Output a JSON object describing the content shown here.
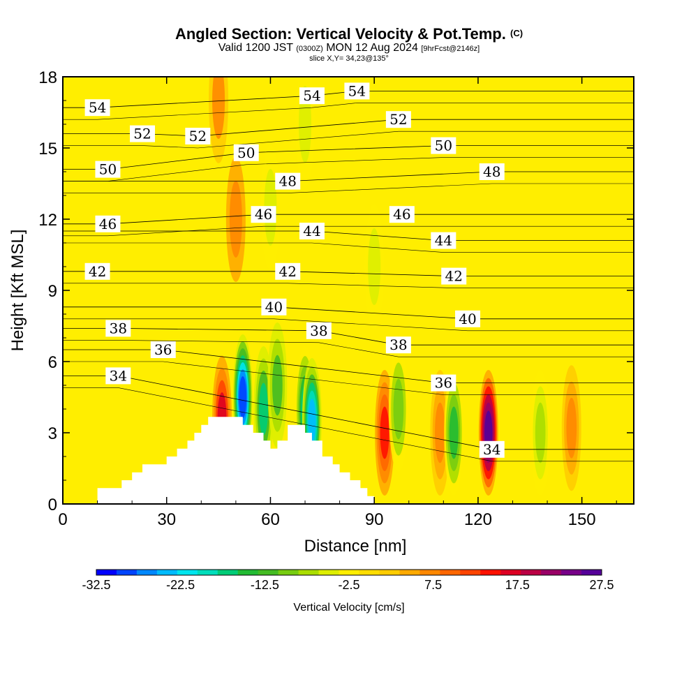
{
  "header": {
    "title": "Angled Section: Vertical Velocity & Pot.Temp.",
    "title_unit": "(C)",
    "valid_prefix": "Valid 1200 JST",
    "valid_z": "(0300Z)",
    "valid_date": "MON 12 Aug 2024",
    "forecast": "[9hrFcst@2146z]",
    "slice": "slice X,Y= 34,23@135°"
  },
  "chart_data": {
    "type": "heatmap",
    "xlabel": "Distance [nm]",
    "ylabel": "Height [Kft MSL]",
    "xlim": [
      0,
      165
    ],
    "ylim": [
      0,
      18
    ],
    "xticks": [
      0,
      30,
      60,
      90,
      120,
      150
    ],
    "yticks": [
      0,
      3,
      6,
      9,
      12,
      15,
      18
    ],
    "background_color": "#ffee00",
    "colorbar": {
      "label": "Vertical Velocity [cm/s]",
      "tick_labels": [
        "-32.5",
        "-22.5",
        "-12.5",
        "-2.5",
        "7.5",
        "17.5",
        "27.5"
      ],
      "colors": [
        "#0000ff",
        "#0044ff",
        "#0088ff",
        "#00bbff",
        "#00e5ee",
        "#00ddbb",
        "#00cc77",
        "#22bb33",
        "#44bb22",
        "#77cc11",
        "#aadd00",
        "#ddee00",
        "#ffee00",
        "#ffdd00",
        "#ffcc00",
        "#ffaa00",
        "#ff8800",
        "#ff6600",
        "#ff4400",
        "#ff1100",
        "#dd0022",
        "#bb0044",
        "#990066",
        "#770088",
        "#550099"
      ]
    },
    "terrain_nm_kft": [
      [
        10,
        0.67
      ],
      [
        17,
        1.0
      ],
      [
        20,
        1.33
      ],
      [
        23,
        1.67
      ],
      [
        30,
        2.0
      ],
      [
        33,
        2.33
      ],
      [
        36,
        2.67
      ],
      [
        38,
        3.0
      ],
      [
        40,
        3.33
      ],
      [
        42,
        3.67
      ],
      [
        52,
        3.33
      ],
      [
        55,
        3.0
      ],
      [
        58,
        2.67
      ],
      [
        60,
        2.33
      ],
      [
        62,
        2.67
      ],
      [
        65,
        3.33
      ],
      [
        70,
        3.0
      ],
      [
        72,
        2.67
      ],
      [
        75,
        2.0
      ],
      [
        78,
        1.67
      ],
      [
        80,
        1.33
      ],
      [
        83,
        1.0
      ],
      [
        86,
        0.67
      ],
      [
        88,
        0.33
      ]
    ],
    "theta_contour_labels": [
      {
        "text": "54",
        "x": 10,
        "y": 16.7
      },
      {
        "text": "54",
        "x": 72,
        "y": 17.2
      },
      {
        "text": "54",
        "x": 85,
        "y": 17.4
      },
      {
        "text": "52",
        "x": 23,
        "y": 15.6
      },
      {
        "text": "52",
        "x": 39,
        "y": 15.5
      },
      {
        "text": "52",
        "x": 97,
        "y": 16.2
      },
      {
        "text": "50",
        "x": 13,
        "y": 14.1
      },
      {
        "text": "50",
        "x": 53,
        "y": 14.8
      },
      {
        "text": "50",
        "x": 110,
        "y": 15.1
      },
      {
        "text": "48",
        "x": 65,
        "y": 13.6
      },
      {
        "text": "48",
        "x": 124,
        "y": 14.0
      },
      {
        "text": "46",
        "x": 13,
        "y": 11.8
      },
      {
        "text": "46",
        "x": 58,
        "y": 12.2
      },
      {
        "text": "46",
        "x": 98,
        "y": 12.2
      },
      {
        "text": "44",
        "x": 72,
        "y": 11.5
      },
      {
        "text": "44",
        "x": 110,
        "y": 11.1
      },
      {
        "text": "42",
        "x": 10,
        "y": 9.8
      },
      {
        "text": "42",
        "x": 65,
        "y": 9.8
      },
      {
        "text": "42",
        "x": 113,
        "y": 9.6
      },
      {
        "text": "40",
        "x": 61,
        "y": 8.3
      },
      {
        "text": "40",
        "x": 117,
        "y": 7.8
      },
      {
        "text": "38",
        "x": 16,
        "y": 7.4
      },
      {
        "text": "38",
        "x": 74,
        "y": 7.3
      },
      {
        "text": "38",
        "x": 97,
        "y": 6.7
      },
      {
        "text": "36",
        "x": 29,
        "y": 6.5
      },
      {
        "text": "36",
        "x": 110,
        "y": 5.1
      },
      {
        "text": "34",
        "x": 16,
        "y": 5.4
      },
      {
        "text": "34",
        "x": 124,
        "y": 2.3
      }
    ],
    "velocity_features": [
      {
        "x": 46,
        "y": 3.6,
        "value": 16
      },
      {
        "x": 52,
        "y": 4.5,
        "value": -30
      },
      {
        "x": 58,
        "y": 4.0,
        "value": -16
      },
      {
        "x": 62,
        "y": 5.0,
        "value": -12
      },
      {
        "x": 70,
        "y": 4.0,
        "value": -18
      },
      {
        "x": 72,
        "y": 3.5,
        "value": -24
      },
      {
        "x": 93,
        "y": 3.0,
        "value": 14
      },
      {
        "x": 97,
        "y": 4.0,
        "value": -10
      },
      {
        "x": 109,
        "y": 3.0,
        "value": 8
      },
      {
        "x": 113,
        "y": 3.0,
        "value": -14
      },
      {
        "x": 123,
        "y": 3.0,
        "value": 27
      },
      {
        "x": 138,
        "y": 3.0,
        "value": -8
      },
      {
        "x": 147,
        "y": 3.2,
        "value": 8
      },
      {
        "x": 45,
        "y": 17.0,
        "value": 6
      },
      {
        "x": 50,
        "y": 12.0,
        "value": 7
      },
      {
        "x": 70,
        "y": 16.0,
        "value": -6
      },
      {
        "x": 90,
        "y": 10.0,
        "value": -4
      },
      {
        "x": 60,
        "y": 12.5,
        "value": -4
      }
    ]
  }
}
